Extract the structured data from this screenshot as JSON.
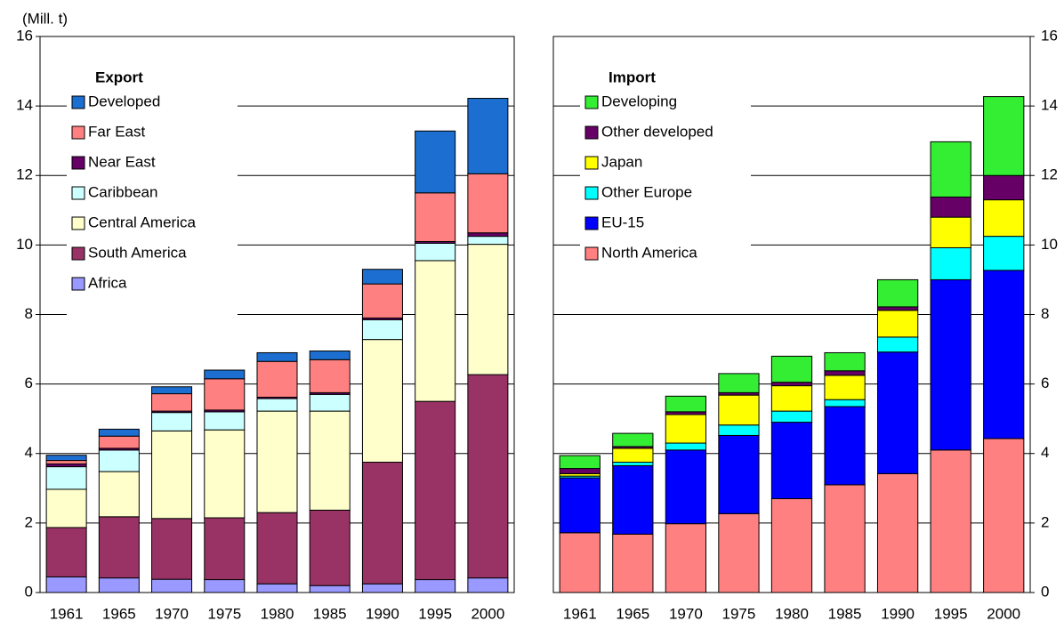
{
  "chart_data": [
    {
      "type": "stacked_bar",
      "y_label": "(Mill. t)",
      "legend_title": "Export",
      "legend": "upper left",
      "y_axis_side": "left",
      "grid": true,
      "categories": [
        "1961",
        "1965",
        "1970",
        "1975",
        "1980",
        "1985",
        "1990",
        "1995",
        "2000"
      ],
      "ylim": [
        0,
        16
      ],
      "yticks": [
        0,
        2,
        4,
        6,
        8,
        10,
        12,
        14,
        16
      ],
      "series": [
        {
          "name": "Africa",
          "color": "#9999ff",
          "values": [
            0.45,
            0.42,
            0.38,
            0.37,
            0.25,
            0.2,
            0.25,
            0.37,
            0.42
          ]
        },
        {
          "name": "South America",
          "color": "#993366",
          "values": [
            1.42,
            1.76,
            1.75,
            1.78,
            2.05,
            2.17,
            3.5,
            5.13,
            5.85
          ]
        },
        {
          "name": "Central America",
          "color": "#ffffcc",
          "values": [
            1.1,
            1.3,
            2.52,
            2.53,
            2.92,
            2.85,
            3.53,
            4.05,
            3.75
          ]
        },
        {
          "name": "Caribbean",
          "color": "#ccffff",
          "values": [
            0.65,
            0.62,
            0.53,
            0.52,
            0.36,
            0.48,
            0.57,
            0.5,
            0.23
          ]
        },
        {
          "name": "Near East",
          "color": "#660066",
          "values": [
            0.08,
            0.05,
            0.04,
            0.05,
            0.04,
            0.05,
            0.05,
            0.05,
            0.1
          ]
        },
        {
          "name": "Far East",
          "color": "#ff8080",
          "values": [
            0.1,
            0.35,
            0.5,
            0.9,
            1.03,
            0.95,
            0.98,
            1.4,
            1.7
          ]
        },
        {
          "name": "Developed",
          "color": "#1c6fd0",
          "values": [
            0.15,
            0.2,
            0.2,
            0.25,
            0.25,
            0.25,
            0.42,
            1.78,
            2.17
          ]
        }
      ]
    },
    {
      "type": "stacked_bar",
      "legend_title": "Import",
      "legend": "upper left",
      "y_axis_side": "right",
      "grid": true,
      "categories": [
        "1961",
        "1965",
        "1970",
        "1975",
        "1980",
        "1985",
        "1990",
        "1995",
        "2000"
      ],
      "ylim": [
        0,
        16
      ],
      "yticks": [
        0,
        2,
        4,
        6,
        8,
        10,
        12,
        14,
        16
      ],
      "series": [
        {
          "name": "North America",
          "color": "#ff8080",
          "values": [
            1.72,
            1.68,
            1.98,
            2.27,
            2.7,
            3.1,
            3.42,
            4.1,
            4.43
          ]
        },
        {
          "name": "EU-15",
          "color": "#0000ff",
          "values": [
            1.58,
            1.97,
            2.12,
            2.25,
            2.2,
            2.25,
            3.5,
            4.9,
            4.84
          ]
        },
        {
          "name": "Other Europe",
          "color": "#00ffff",
          "values": [
            0.05,
            0.1,
            0.2,
            0.3,
            0.32,
            0.2,
            0.43,
            0.92,
            0.98
          ]
        },
        {
          "name": "Japan",
          "color": "#ffff00",
          "values": [
            0.07,
            0.4,
            0.82,
            0.86,
            0.73,
            0.7,
            0.77,
            0.88,
            1.05
          ]
        },
        {
          "name": "Other developed",
          "color": "#660066",
          "values": [
            0.15,
            0.05,
            0.08,
            0.07,
            0.1,
            0.13,
            0.1,
            0.58,
            0.7
          ]
        },
        {
          "name": "Developing",
          "color": "#33ee33",
          "values": [
            0.37,
            0.38,
            0.45,
            0.55,
            0.75,
            0.52,
            0.78,
            1.59,
            2.27
          ]
        }
      ]
    }
  ]
}
